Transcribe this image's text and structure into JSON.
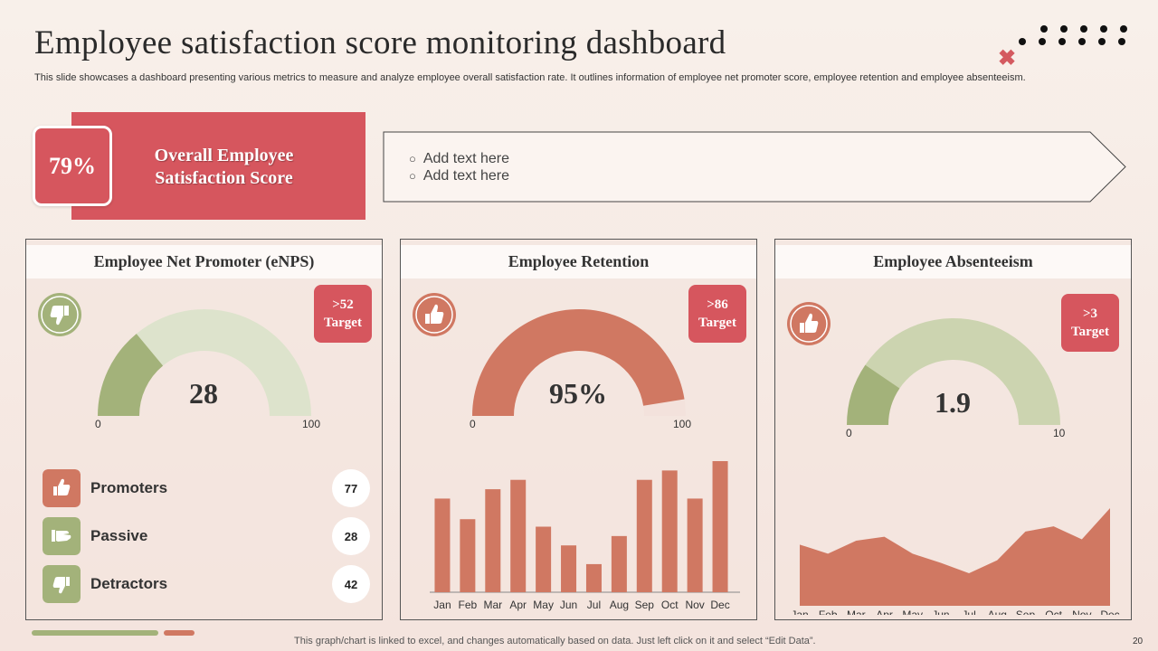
{
  "header": {
    "title": "Employee satisfaction score monitoring dashboard",
    "subtitle": "This slide showcases a dashboard presenting various metrics to measure and analyze employee overall satisfaction rate. It outlines information of employee net promoter score, employee retention and employee absenteeism."
  },
  "overall": {
    "value": "79%",
    "label": "Overall Employee Satisfaction Score"
  },
  "notes": [
    "Add text here",
    "Add text here"
  ],
  "colors": {
    "red": "#d6565e",
    "terracotta": "#d07862",
    "sage": "#a3b27a",
    "sage_light": "#dde3cc"
  },
  "enps": {
    "title": "Employee Net Promoter (eNPS)",
    "icon": "thumbs-down-icon",
    "target_value": ">52",
    "target_label": "Target",
    "value": "28",
    "fraction": 0.28,
    "min_label": "0",
    "max_label": "100",
    "legend": [
      {
        "label": "Promoters",
        "value": "77",
        "icon": "thumbs-up-icon"
      },
      {
        "label": "Passive",
        "value": "28",
        "icon": "hand-sideways-icon"
      },
      {
        "label": "Detractors",
        "value": "42",
        "icon": "thumbs-down-icon"
      }
    ]
  },
  "retention": {
    "title": "Employee Retention",
    "icon": "thumbs-up-icon",
    "target_value": ">86",
    "target_label": "Target",
    "value": "95%",
    "fraction": 0.95,
    "min_label": "0",
    "max_label": "100"
  },
  "absenteeism": {
    "title": "Employee Absenteeism",
    "icon": "thumbs-up-icon",
    "target_value": ">3",
    "target_label": "Target",
    "value": "1.9",
    "fraction": 0.19,
    "min_label": "0",
    "max_label": "10"
  },
  "chart_data": [
    {
      "type": "bar",
      "title": "Employee Retention",
      "categories": [
        "Jan",
        "Feb",
        "Mar",
        "Apr",
        "May",
        "Jun",
        "Jul",
        "Aug",
        "Sep",
        "Oct",
        "Nov",
        "Dec"
      ],
      "values": [
        50,
        39,
        55,
        60,
        35,
        25,
        15,
        30,
        60,
        65,
        50,
        70
      ],
      "ylim": [
        0,
        70
      ]
    },
    {
      "type": "area",
      "title": "Employee Absenteeism",
      "categories": [
        "Jan",
        "Feb",
        "Mar",
        "Apr",
        "May",
        "Jun",
        "Jul",
        "Aug",
        "Sep",
        "Oct",
        "Nov",
        "Dec"
      ],
      "values": [
        47,
        40,
        50,
        53,
        40,
        33,
        25,
        35,
        57,
        61,
        51,
        75
      ],
      "ylim": [
        0,
        75
      ]
    }
  ],
  "footer": {
    "note": "This graph/chart is linked to excel, and changes automatically based on data. Just left click on it and select “Edit Data”.",
    "page": "20"
  }
}
